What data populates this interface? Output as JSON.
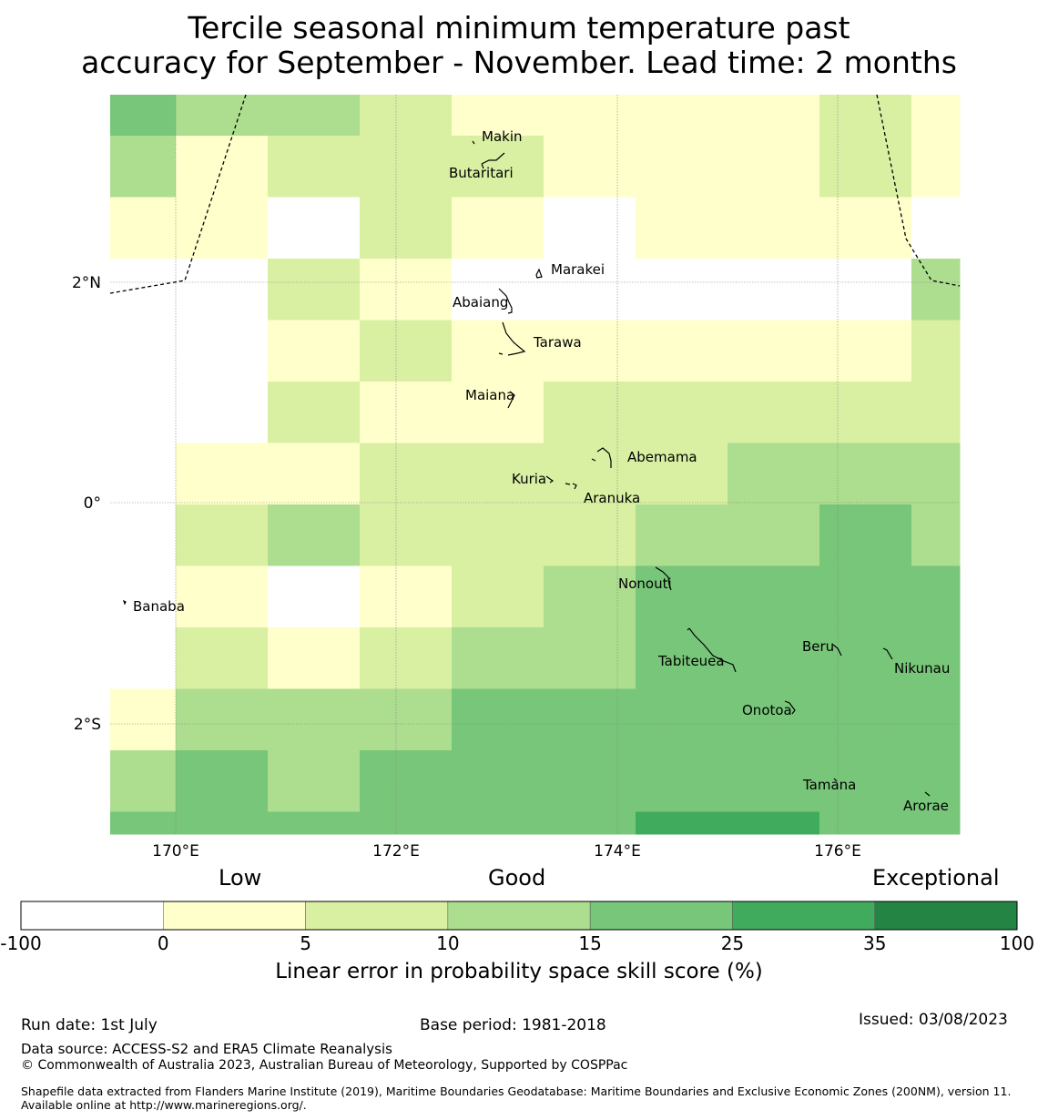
{
  "title": {
    "line1": "Tercile seasonal minimum temperature past",
    "line2": "accuracy for September - November. Lead time: 2 months"
  },
  "map": {
    "lon_ticks": [
      "170°E",
      "172°E",
      "174°E",
      "176°E"
    ],
    "lat_ticks": [
      "2°N",
      "0°",
      "2°S"
    ],
    "place_labels": [
      "Makin",
      "Butaritari",
      "Marakei",
      "Abaiang",
      "Tarawa",
      "Maiana",
      "Abemama",
      "Kuria",
      "Aranuka",
      "Nonouti",
      "Banaba",
      "Tabiteuea",
      "Beru",
      "Nikunau",
      "Onotoa",
      "Tamana",
      "Arorae"
    ],
    "colors": [
      "#ffffff",
      "#ffffcc",
      "#d9f0a3",
      "#addd8e",
      "#78c679",
      "#41ab5d",
      "#238443"
    ],
    "grid_classes": [
      [
        4,
        3,
        3,
        2,
        1,
        1,
        1,
        1,
        2,
        1
      ],
      [
        3,
        1,
        2,
        2,
        2,
        1,
        1,
        1,
        2,
        1
      ],
      [
        1,
        1,
        0,
        2,
        1,
        0,
        1,
        1,
        1,
        0
      ],
      [
        0,
        0,
        2,
        1,
        0,
        0,
        0,
        0,
        0,
        3
      ],
      [
        0,
        0,
        1,
        2,
        1,
        1,
        1,
        1,
        1,
        2
      ],
      [
        0,
        0,
        2,
        1,
        1,
        2,
        2,
        2,
        2,
        2
      ],
      [
        0,
        1,
        1,
        2,
        2,
        2,
        2,
        3,
        3,
        3
      ],
      [
        0,
        2,
        3,
        2,
        2,
        2,
        3,
        3,
        4,
        3
      ],
      [
        0,
        1,
        0,
        1,
        2,
        3,
        4,
        4,
        4,
        4
      ],
      [
        0,
        2,
        1,
        2,
        3,
        3,
        4,
        4,
        4,
        4
      ],
      [
        1,
        3,
        3,
        3,
        4,
        4,
        4,
        4,
        4,
        4
      ],
      [
        3,
        4,
        3,
        4,
        4,
        4,
        4,
        4,
        4,
        4
      ],
      [
        4,
        4,
        4,
        4,
        4,
        4,
        5,
        5,
        4,
        4
      ]
    ]
  },
  "colorbar": {
    "categories": [
      "Low",
      "Good",
      "Exceptional"
    ],
    "ticks": [
      "-100",
      "0",
      "5",
      "10",
      "15",
      "25",
      "35",
      "100"
    ],
    "title": "Linear error in probability space skill score (%)"
  },
  "footer": {
    "run_date": "Run date: 1st July",
    "base_period": "Base period: 1981-2018",
    "issued": "Issued: 03/08/2023",
    "data_source": "Data source: ACCESS-S2 and ERA5 Climate Reanalysis",
    "copyright": "© Commonwealth of Australia 2023, Australian Bureau of Meteorology, Supported by COSPPac",
    "shapefile": "Shapefile data extracted from Flanders Marine Institute (2019), Maritime Boundaries Geodatabase: Maritime Boundaries and Exclusive Economic Zones (200NM), version 11. Available online at http://www.marineregions.org/."
  }
}
